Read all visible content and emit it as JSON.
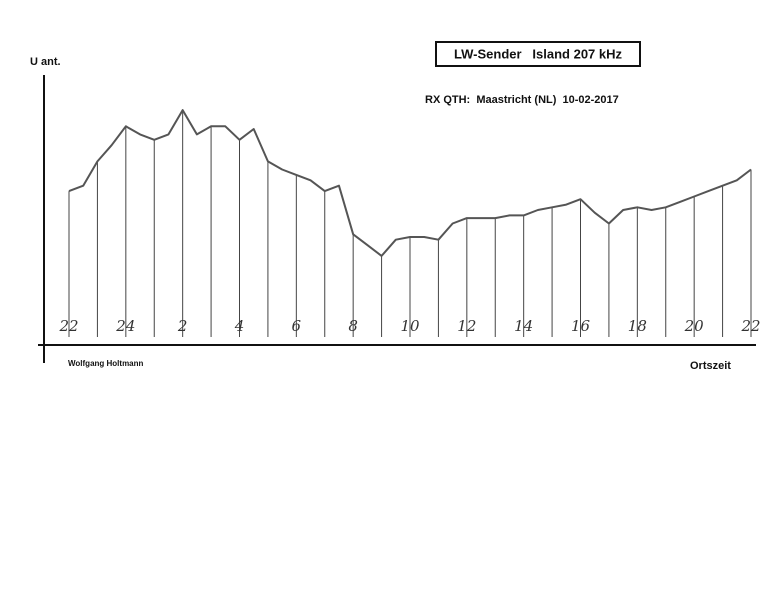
{
  "chart_data": {
    "type": "line",
    "title": "LW-Sender   Island 207 kHz",
    "subtitle": "RX QTH:  Maastricht (NL)  10-02-2017",
    "y_label": "U ant.",
    "x_label": "Ortszeit",
    "author": "Wolfgang Holtmann",
    "x": [
      0,
      0.5,
      1,
      1.5,
      2,
      2.5,
      3,
      3.5,
      4,
      4.5,
      5,
      5.5,
      6,
      6.5,
      7,
      7.5,
      8,
      8.5,
      9,
      9.5,
      10,
      10.5,
      11,
      11.5,
      12,
      12.5,
      13,
      13.5,
      14,
      14.5,
      15,
      15.5,
      16,
      16.5,
      17,
      17.5,
      18,
      18.5,
      19,
      19.5,
      20,
      20.5,
      21,
      21.5,
      22,
      22.5,
      23,
      23.5,
      24
    ],
    "series": [
      {
        "color": "#555555",
        "values": [
          57,
          59,
          68,
          74,
          81,
          78,
          76,
          78,
          87,
          78,
          81,
          81,
          76,
          80,
          68,
          65,
          63,
          61,
          57,
          59,
          41,
          37,
          33,
          39,
          40,
          40,
          39,
          45,
          47,
          47,
          47,
          48,
          48,
          50,
          51,
          52,
          54,
          49,
          45,
          50,
          51,
          50,
          51,
          53,
          55,
          57,
          59,
          61,
          65
        ]
      }
    ],
    "xlim": [
      0,
      24
    ],
    "ylim": [
      0,
      100
    ],
    "xticks": [
      {
        "value": 0,
        "label": "22"
      },
      {
        "value": 2,
        "label": "24"
      },
      {
        "value": 4,
        "label": "2"
      },
      {
        "value": 6,
        "label": "4"
      },
      {
        "value": 8,
        "label": "6"
      },
      {
        "value": 10,
        "label": "8"
      },
      {
        "value": 12,
        "label": "10"
      },
      {
        "value": 14,
        "label": "12"
      },
      {
        "value": 16,
        "label": "14"
      },
      {
        "value": 18,
        "label": "16"
      },
      {
        "value": 20,
        "label": "18"
      },
      {
        "value": 22,
        "label": "20"
      },
      {
        "value": 24,
        "label": "22"
      }
    ],
    "minor_xticks": [
      1,
      3,
      5,
      7,
      9,
      11,
      13,
      15,
      17,
      19,
      21,
      23
    ]
  }
}
